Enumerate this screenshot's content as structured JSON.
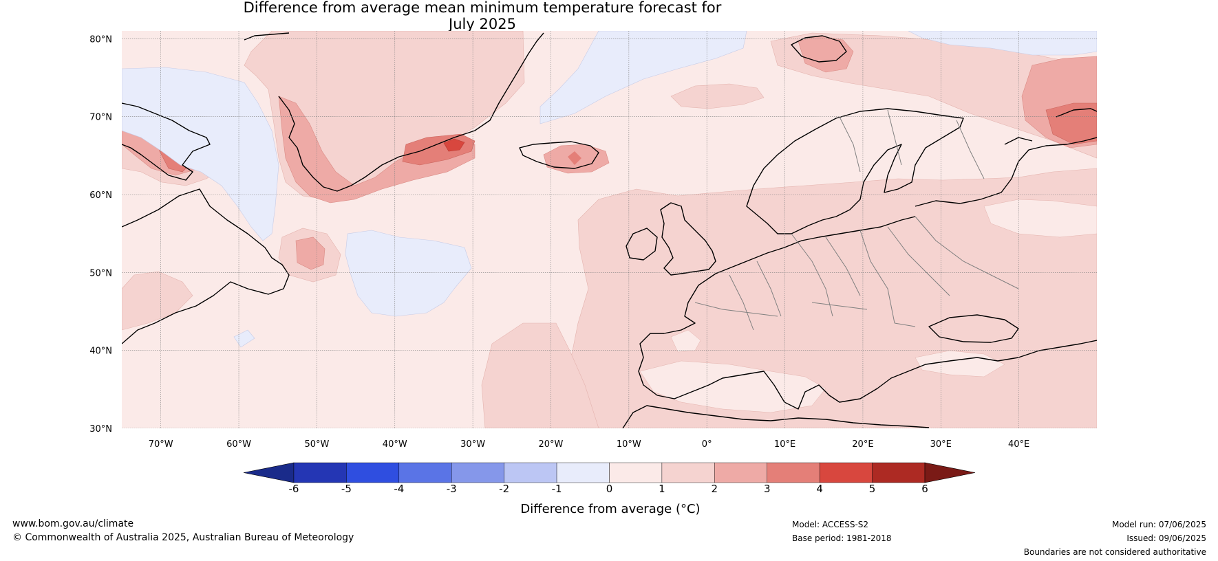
{
  "title": {
    "line1": "Difference from average mean minimum temperature forecast for",
    "line2": "July 2025"
  },
  "map": {
    "lat_labels": [
      "80°N",
      "70°N",
      "60°N",
      "50°N",
      "40°N",
      "30°N"
    ],
    "lon_labels": [
      "70°W",
      "60°W",
      "50°W",
      "40°W",
      "30°W",
      "20°W",
      "10°W",
      "0°",
      "10°E",
      "20°E",
      "30°E",
      "40°E"
    ],
    "lat_range": [
      30,
      81
    ],
    "lon_range": [
      -75,
      50
    ]
  },
  "colorbar": {
    "title": "Difference from average (°C)",
    "ticks": [
      "-6",
      "-5",
      "-4",
      "-3",
      "-2",
      "-1",
      "0",
      "1",
      "2",
      "3",
      "4",
      "5",
      "6"
    ],
    "colors": {
      "below_-6": "#1a2b8a",
      "-6_-5": "#2436b4",
      "-5_-4": "#2f4ee0",
      "-4_-3": "#5a74e6",
      "-3_-2": "#8597ea",
      "-2_-1": "#bcc6f4",
      "-1_0": "#e8ecfb",
      "0_1": "#fbeae8",
      "1_2": "#f5d3d0",
      "2_3": "#eeaaa6",
      "3_4": "#e47f78",
      "4_5": "#d8473e",
      "5_6": "#ad2a23",
      "above_6": "#7a1a16"
    }
  },
  "footer": {
    "website": "www.bom.gov.au/climate",
    "copyright": "© Commonwealth of Australia 2025, Australian Bureau of Meteorology",
    "model": "Model: ACCESS-S2",
    "base_period": "Base period: 1981-2018",
    "model_run": "Model run: 07/06/2025",
    "issued": "Issued: 09/06/2025",
    "disclaimer": "Boundaries are not considered authoritative"
  }
}
